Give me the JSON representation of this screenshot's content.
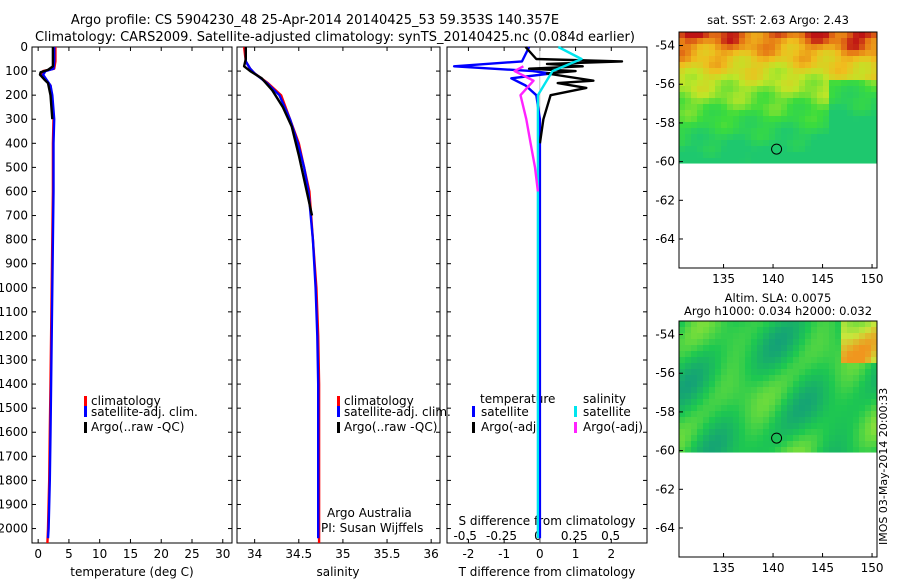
{
  "header": {
    "line1": "Argo profile: CS 5904230_48 25-Apr-2014 20140425_53 59.353S 140.357E",
    "line2": "Climatology: CARS2009. Satellite-adjusted climatology: synTS_20140425.nc (0.084d earlier)"
  },
  "colors": {
    "climatology": "#ff0000",
    "satellite": "#0000ff",
    "argo": "#000000",
    "sal_satellite": "#00e5ee",
    "sal_argo": "#ff22ff"
  },
  "depth_axis": {
    "ticks": [
      0,
      100,
      200,
      300,
      400,
      500,
      600,
      700,
      800,
      900,
      1000,
      1100,
      1200,
      1300,
      1400,
      1500,
      1600,
      1700,
      1800,
      1900,
      2000
    ],
    "ylim": [
      0,
      2060
    ]
  },
  "legend_main": {
    "climatology": "climatology",
    "satellite": "satellite-adj. clim.",
    "argo": "Argo(..raw -QC)"
  },
  "legend_diff": {
    "temp_head": "temperature",
    "sal_head": "salinity",
    "satellite": "satellite",
    "argo": "Argo(-adj)"
  },
  "credits": {
    "line1": "Argo Australia",
    "line2": "PI: Susan Wijffels"
  },
  "imos_stamp": "IMOS 03-May-2014 20:00:33",
  "side_maps": {
    "sst_title": "sat. SST: 2.63 Argo: 2.43",
    "sla_title1": "Altim. SLA: 0.0075",
    "sla_title2": "Argo h1000: 0.034 h2000: 0.032",
    "yticks": [
      "-54",
      "-56",
      "-58",
      "-60",
      "-62",
      "-64"
    ],
    "xticks": [
      "135",
      "140",
      "145",
      "150"
    ]
  },
  "chart_data": [
    {
      "type": "line",
      "panel": "temperature",
      "xlabel": "temperature (deg C)",
      "xlim": [
        -1,
        31.5
      ],
      "xticks": [
        0,
        5,
        10,
        15,
        20,
        25,
        30
      ],
      "ylim": [
        0,
        2060
      ],
      "series": [
        {
          "name": "climatology",
          "points": [
            [
              2.8,
              0
            ],
            [
              2.8,
              60
            ],
            [
              2.6,
              90
            ],
            [
              0.8,
              100
            ],
            [
              0.6,
              115
            ],
            [
              2.0,
              160
            ],
            [
              2.2,
              200
            ],
            [
              2.5,
              300
            ],
            [
              2.4,
              400
            ],
            [
              2.4,
              600
            ],
            [
              2.3,
              800
            ],
            [
              2.2,
              1000
            ],
            [
              2.1,
              1200
            ],
            [
              2.0,
              1400
            ],
            [
              1.9,
              1600
            ],
            [
              1.8,
              1800
            ],
            [
              1.6,
              2000
            ],
            [
              1.5,
              2060
            ]
          ]
        },
        {
          "name": "satellite-adj. clim.",
          "points": [
            [
              2.6,
              0
            ],
            [
              2.6,
              60
            ],
            [
              2.5,
              90
            ],
            [
              1.2,
              100
            ],
            [
              0.8,
              115
            ],
            [
              2.0,
              160
            ],
            [
              2.3,
              200
            ],
            [
              2.6,
              300
            ],
            [
              2.5,
              400
            ],
            [
              2.5,
              600
            ],
            [
              2.4,
              800
            ],
            [
              2.3,
              1000
            ],
            [
              2.2,
              1200
            ],
            [
              2.1,
              1400
            ],
            [
              2.0,
              1600
            ],
            [
              1.9,
              1800
            ],
            [
              1.7,
              2000
            ],
            [
              1.6,
              2040
            ]
          ]
        },
        {
          "name": "Argo(..raw -QC)",
          "points": [
            [
              2.4,
              0
            ],
            [
              2.4,
              80
            ],
            [
              1.6,
              95
            ],
            [
              0.4,
              105
            ],
            [
              0.3,
              115
            ],
            [
              1.0,
              135
            ],
            [
              1.6,
              150
            ],
            [
              2.0,
              200
            ],
            [
              2.3,
              300
            ]
          ]
        }
      ]
    },
    {
      "type": "line",
      "panel": "salinity",
      "xlabel": "salinity",
      "xlim": [
        33.8,
        36.1
      ],
      "xticks": [
        34,
        34.5,
        35,
        35.5,
        36
      ],
      "ylim": [
        0,
        2060
      ],
      "series": [
        {
          "name": "climatology",
          "points": [
            [
              33.88,
              0
            ],
            [
              33.9,
              60
            ],
            [
              33.95,
              90
            ],
            [
              34.0,
              110
            ],
            [
              34.15,
              150
            ],
            [
              34.3,
              200
            ],
            [
              34.4,
              300
            ],
            [
              34.5,
              400
            ],
            [
              34.56,
              500
            ],
            [
              34.62,
              600
            ],
            [
              34.66,
              800
            ],
            [
              34.7,
              1000
            ],
            [
              34.72,
              1200
            ],
            [
              34.73,
              1400
            ],
            [
              34.73,
              1600
            ],
            [
              34.73,
              1800
            ],
            [
              34.73,
              2000
            ],
            [
              34.73,
              2060
            ]
          ]
        },
        {
          "name": "satellite-adj. clim.",
          "points": [
            [
              33.9,
              0
            ],
            [
              33.9,
              60
            ],
            [
              33.95,
              90
            ],
            [
              34.0,
              110
            ],
            [
              34.14,
              150
            ],
            [
              34.28,
              200
            ],
            [
              34.4,
              300
            ],
            [
              34.49,
              400
            ],
            [
              34.56,
              500
            ],
            [
              34.61,
              600
            ],
            [
              34.66,
              800
            ],
            [
              34.69,
              1000
            ],
            [
              34.71,
              1200
            ],
            [
              34.72,
              1400
            ],
            [
              34.72,
              1600
            ],
            [
              34.72,
              1800
            ],
            [
              34.72,
              2000
            ],
            [
              34.72,
              2040
            ]
          ]
        },
        {
          "name": "Argo(..raw -QC)",
          "points": [
            [
              33.9,
              0
            ],
            [
              33.9,
              50
            ],
            [
              33.88,
              80
            ],
            [
              33.95,
              100
            ],
            [
              34.08,
              130
            ],
            [
              34.2,
              180
            ],
            [
              34.32,
              250
            ],
            [
              34.42,
              330
            ],
            [
              34.5,
              450
            ],
            [
              34.56,
              550
            ],
            [
              34.62,
              650
            ],
            [
              34.65,
              700
            ]
          ]
        }
      ]
    },
    {
      "type": "line",
      "panel": "difference",
      "xlabel": "T difference from climatology",
      "xlabel_top": "S difference from climatology",
      "xlim": [
        -2.6,
        3.0
      ],
      "xticks": [
        -2,
        -1,
        0,
        1,
        2
      ],
      "xticks_top": [
        -0.5,
        -0.25,
        0,
        0.25,
        0.5
      ],
      "ylim": [
        0,
        2060
      ],
      "series": [
        {
          "name": "temperature satellite",
          "points": [
            [
              -0.3,
              0
            ],
            [
              -0.5,
              60
            ],
            [
              -2.4,
              80
            ],
            [
              -0.2,
              100
            ],
            [
              0.3,
              110
            ],
            [
              -0.8,
              130
            ],
            [
              -0.4,
              160
            ],
            [
              -0.1,
              200
            ],
            [
              0,
              300
            ],
            [
              0,
              2040
            ]
          ]
        },
        {
          "name": "temperature Argo(-adj)",
          "points": [
            [
              -0.4,
              0
            ],
            [
              -0.1,
              50
            ],
            [
              2.3,
              60
            ],
            [
              0.2,
              70
            ],
            [
              1.2,
              80
            ],
            [
              -0.3,
              90
            ],
            [
              1.0,
              100
            ],
            [
              0.2,
              110
            ],
            [
              1.5,
              140
            ],
            [
              0.5,
              150
            ],
            [
              1.3,
              170
            ],
            [
              0.3,
              200
            ],
            [
              0.1,
              300
            ],
            [
              0,
              400
            ]
          ]
        },
        {
          "name": "salinity satellite",
          "points": [
            [
              0.14,
              0
            ],
            [
              0.3,
              50
            ],
            [
              0.1,
              100
            ],
            [
              0.05,
              150
            ],
            [
              0,
              200
            ],
            [
              0,
              2040
            ]
          ]
        },
        {
          "name": "salinity Argo(-adj)",
          "points": [
            [
              -0.1,
              80
            ],
            [
              -0.16,
              100
            ],
            [
              -0.03,
              140
            ],
            [
              -0.12,
              200
            ],
            [
              -0.08,
              300
            ],
            [
              -0.05,
              400
            ],
            [
              -0.02,
              500
            ],
            [
              0,
              600
            ]
          ]
        }
      ]
    },
    {
      "type": "heatmap",
      "panel": "sat_sst",
      "title": "sat. SST: 2.63 Argo: 2.43",
      "xticks": [
        135,
        140,
        145,
        150
      ],
      "yticks": [
        -54,
        -56,
        -58,
        -60,
        -62,
        -64
      ],
      "xlim": [
        130.5,
        150.5
      ],
      "ylim": [
        -65.5,
        -53.3
      ],
      "data_bottom": -60.1,
      "argo_position": [
        140.357,
        -59.353
      ]
    },
    {
      "type": "heatmap",
      "panel": "altim_sla",
      "title": "Altim. SLA: 0.0075 Argo h1000: 0.034 h2000: 0.032",
      "xticks": [
        135,
        140,
        145,
        150
      ],
      "yticks": [
        -54,
        -56,
        -58,
        -60,
        -62,
        -64
      ],
      "xlim": [
        130.5,
        150.5
      ],
      "ylim": [
        -65.5,
        -53.3
      ],
      "data_bottom": -60.1,
      "argo_position": [
        140.357,
        -59.353
      ]
    }
  ]
}
